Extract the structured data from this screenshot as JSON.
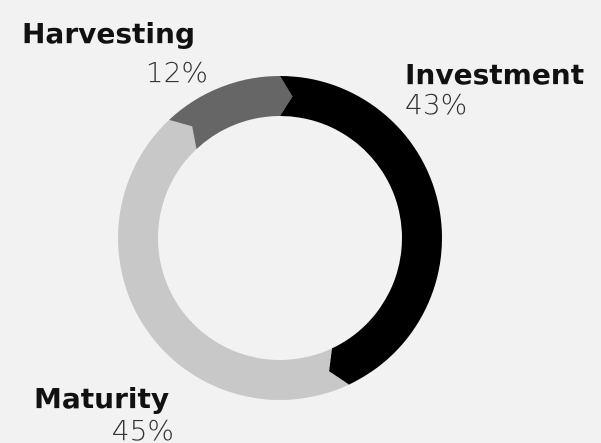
{
  "chart_data": {
    "type": "pie",
    "donut": true,
    "categories": [
      "Investment",
      "Maturity",
      "Harvesting"
    ],
    "values": [
      43,
      45,
      12
    ],
    "value_labels": [
      "43%",
      "45%",
      "12%"
    ],
    "colors": [
      "#000000",
      "#c8c8c8",
      "#666666"
    ]
  }
}
